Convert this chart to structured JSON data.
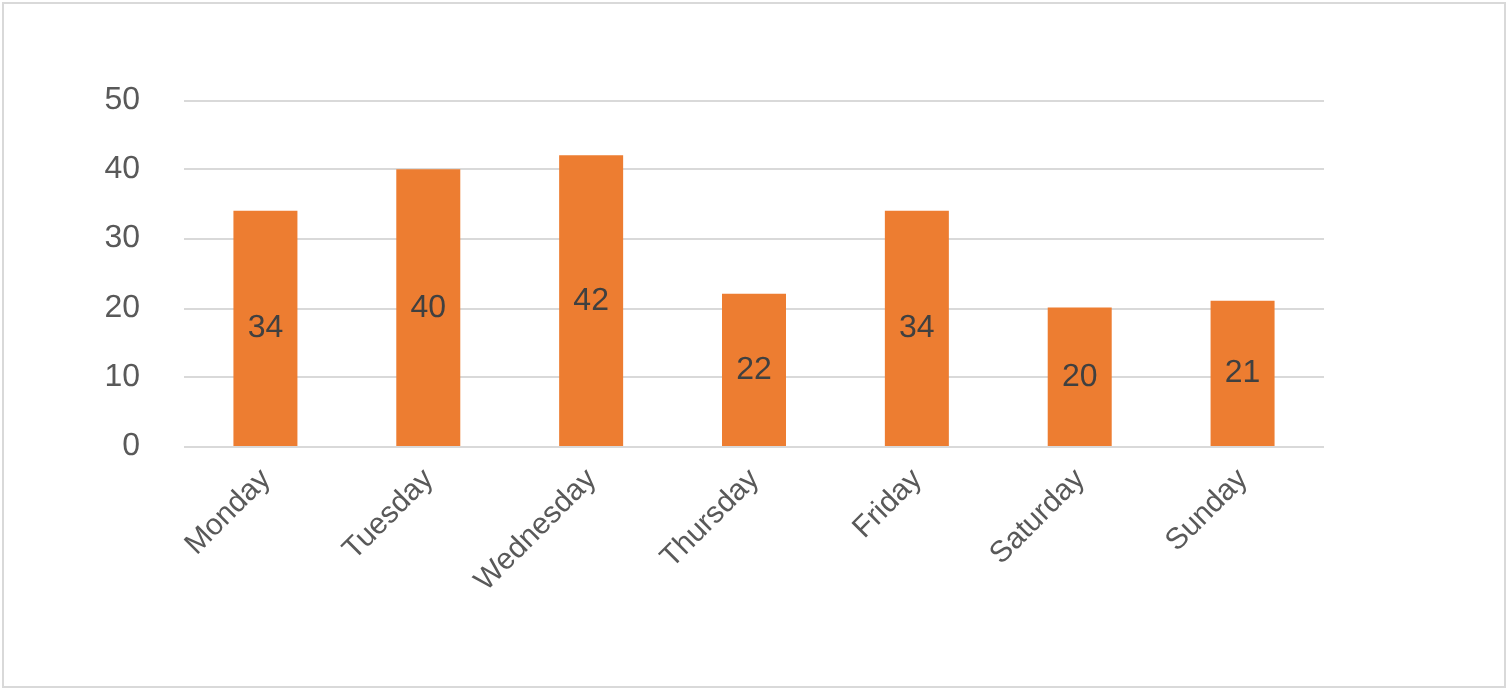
{
  "chart_data": {
    "type": "bar",
    "categories": [
      "Monday",
      "Tuesday",
      "Wednesday",
      "Thursday",
      "Friday",
      "Saturday",
      "Sunday"
    ],
    "values": [
      34,
      40,
      42,
      22,
      34,
      20,
      21
    ],
    "color": "#ed7d31",
    "ylim": [
      0,
      50
    ],
    "yticks": [
      0,
      10,
      20,
      30,
      40,
      50
    ],
    "grid": "y",
    "data_labels": true
  }
}
